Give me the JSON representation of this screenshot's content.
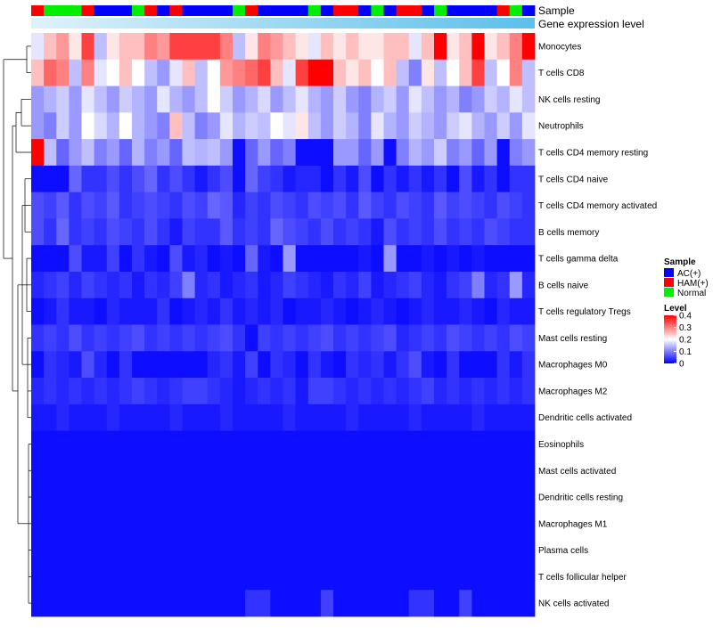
{
  "chart_data": {
    "type": "heatmap",
    "title": "",
    "annotation_labels": {
      "sample": "Sample",
      "expression": "Gene expression level"
    },
    "rows": [
      "Monocytes",
      "T cells CD8",
      "NK cells resting",
      "Neutrophils",
      "T cells CD4 memory resting",
      "T cells CD4 naive",
      "T cells CD4 memory activated",
      "B cells memory",
      "T cells gamma delta",
      "B cells naive",
      "T cells regulatory  Tregs",
      "Mast cells resting",
      "Macrophages M0",
      "Macrophages M2",
      "Dendritic cells activated",
      "Eosinophils",
      "Mast cells activated",
      "Dendritic cells resting",
      "Macrophages M1",
      "Plasma cells",
      "T cells follicular helper",
      "NK cells activated"
    ],
    "n_samples": 40,
    "sample_groups": [
      "HAM(+)",
      "Normal",
      "Normal",
      "Normal",
      "HAM(+)",
      "AC(+)",
      "AC(+)",
      "AC(+)",
      "Normal",
      "HAM(+)",
      "AC(+)",
      "HAM(+)",
      "AC(+)",
      "AC(+)",
      "AC(+)",
      "AC(+)",
      "Normal",
      "HAM(+)",
      "AC(+)",
      "AC(+)",
      "AC(+)",
      "AC(+)",
      "Normal",
      "AC(+)",
      "HAM(+)",
      "HAM(+)",
      "AC(+)",
      "Normal",
      "AC(+)",
      "HAM(+)",
      "HAM(+)",
      "AC(+)",
      "Normal",
      "AC(+)",
      "AC(+)",
      "AC(+)",
      "AC(+)",
      "HAM(+)",
      "Normal",
      "AC(+)"
    ],
    "values": [
      [
        0.18,
        0.25,
        0.28,
        0.22,
        0.35,
        0.15,
        0.22,
        0.25,
        0.25,
        0.3,
        0.28,
        0.35,
        0.35,
        0.35,
        0.35,
        0.3,
        0.15,
        0.22,
        0.3,
        0.28,
        0.25,
        0.22,
        0.18,
        0.25,
        0.22,
        0.25,
        0.22,
        0.22,
        0.25,
        0.25,
        0.18,
        0.25,
        0.4,
        0.22,
        0.25,
        0.4,
        0.22,
        0.25,
        0.3,
        0.4
      ],
      [
        0.25,
        0.32,
        0.3,
        0.15,
        0.3,
        0.18,
        0.2,
        0.25,
        0.2,
        0.15,
        0.12,
        0.18,
        0.25,
        0.15,
        0.2,
        0.28,
        0.3,
        0.32,
        0.35,
        0.25,
        0.18,
        0.35,
        0.4,
        0.4,
        0.25,
        0.22,
        0.25,
        0.2,
        0.25,
        0.15,
        0.1,
        0.22,
        0.15,
        0.2,
        0.25,
        0.35,
        0.15,
        0.2,
        0.3,
        0.15
      ],
      [
        0.12,
        0.14,
        0.16,
        0.12,
        0.18,
        0.15,
        0.12,
        0.16,
        0.14,
        0.12,
        0.18,
        0.14,
        0.12,
        0.15,
        0.2,
        0.16,
        0.12,
        0.14,
        0.17,
        0.12,
        0.15,
        0.18,
        0.14,
        0.12,
        0.16,
        0.12,
        0.1,
        0.14,
        0.16,
        0.12,
        0.18,
        0.15,
        0.12,
        0.14,
        0.1,
        0.12,
        0.16,
        0.14,
        0.18,
        0.15
      ],
      [
        0.12,
        0.1,
        0.16,
        0.12,
        0.2,
        0.17,
        0.14,
        0.2,
        0.14,
        0.12,
        0.1,
        0.25,
        0.15,
        0.1,
        0.12,
        0.18,
        0.14,
        0.16,
        0.15,
        0.2,
        0.18,
        0.22,
        0.15,
        0.12,
        0.16,
        0.14,
        0.1,
        0.18,
        0.14,
        0.12,
        0.16,
        0.14,
        0.12,
        0.16,
        0.18,
        0.14,
        0.12,
        0.16,
        0.12,
        0.18
      ],
      [
        0.4,
        0.15,
        0.08,
        0.12,
        0.15,
        0.1,
        0.12,
        0.08,
        0.14,
        0.1,
        0.12,
        0.08,
        0.15,
        0.14,
        0.15,
        0.12,
        0.01,
        0.08,
        0.12,
        0.08,
        0.1,
        0.01,
        0.01,
        0.01,
        0.12,
        0.12,
        0.08,
        0.12,
        0.01,
        0.1,
        0.14,
        0.12,
        0.16,
        0.1,
        0.12,
        0.08,
        0.12,
        0.01,
        0.1,
        0.12
      ],
      [
        0.01,
        0.01,
        0.01,
        0.08,
        0.04,
        0.04,
        0.06,
        0.04,
        0.06,
        0.08,
        0.04,
        0.06,
        0.04,
        0.02,
        0.04,
        0.06,
        0.01,
        0.08,
        0.05,
        0.04,
        0.02,
        0.03,
        0.03,
        0.01,
        0.04,
        0.02,
        0.06,
        0.01,
        0.04,
        0.02,
        0.04,
        0.02,
        0.04,
        0.01,
        0.06,
        0.02,
        0.04,
        0.01,
        0.04,
        0.04
      ],
      [
        0.06,
        0.05,
        0.07,
        0.04,
        0.06,
        0.05,
        0.07,
        0.04,
        0.05,
        0.06,
        0.05,
        0.04,
        0.06,
        0.05,
        0.08,
        0.07,
        0.03,
        0.05,
        0.04,
        0.06,
        0.05,
        0.04,
        0.06,
        0.05,
        0.06,
        0.04,
        0.07,
        0.05,
        0.04,
        0.06,
        0.05,
        0.04,
        0.07,
        0.05,
        0.06,
        0.05,
        0.04,
        0.06,
        0.05,
        0.04
      ],
      [
        0.06,
        0.04,
        0.08,
        0.04,
        0.05,
        0.04,
        0.06,
        0.05,
        0.04,
        0.06,
        0.04,
        0.02,
        0.05,
        0.04,
        0.04,
        0.07,
        0.04,
        0.05,
        0.04,
        0.08,
        0.06,
        0.05,
        0.04,
        0.06,
        0.04,
        0.05,
        0.04,
        0.02,
        0.06,
        0.04,
        0.05,
        0.04,
        0.06,
        0.04,
        0.05,
        0.04,
        0.06,
        0.05,
        0.04,
        0.04
      ],
      [
        0.01,
        0.01,
        0.01,
        0.06,
        0.02,
        0.02,
        0.05,
        0.01,
        0.04,
        0.02,
        0.01,
        0.06,
        0.02,
        0.03,
        0.01,
        0.02,
        0.01,
        0.08,
        0.02,
        0.01,
        0.12,
        0.01,
        0.01,
        0.01,
        0.01,
        0.01,
        0.02,
        0.01,
        0.12,
        0.01,
        0.01,
        0.02,
        0.01,
        0.02,
        0.01,
        0.02,
        0.01,
        0.01,
        0.01,
        0.01
      ],
      [
        0.03,
        0.04,
        0.05,
        0.03,
        0.05,
        0.04,
        0.03,
        0.04,
        0.02,
        0.04,
        0.03,
        0.05,
        0.1,
        0.03,
        0.04,
        0.02,
        0.03,
        0.04,
        0.02,
        0.03,
        0.05,
        0.04,
        0.03,
        0.02,
        0.04,
        0.03,
        0.05,
        0.02,
        0.03,
        0.04,
        0.05,
        0.03,
        0.02,
        0.04,
        0.05,
        0.1,
        0.03,
        0.04,
        0.12,
        0.03
      ],
      [
        0.01,
        0.02,
        0.04,
        0.02,
        0.02,
        0.01,
        0.03,
        0.02,
        0.02,
        0.02,
        0.04,
        0.01,
        0.02,
        0.03,
        0.02,
        0.04,
        0.02,
        0.03,
        0.02,
        0.03,
        0.01,
        0.02,
        0.02,
        0.03,
        0.02,
        0.01,
        0.02,
        0.03,
        0.02,
        0.01,
        0.02,
        0.03,
        0.02,
        0.02,
        0.03,
        0.02,
        0.01,
        0.03,
        0.02,
        0.02
      ],
      [
        0.04,
        0.05,
        0.04,
        0.06,
        0.04,
        0.05,
        0.04,
        0.05,
        0.06,
        0.04,
        0.05,
        0.04,
        0.05,
        0.04,
        0.05,
        0.06,
        0.04,
        0.01,
        0.05,
        0.04,
        0.05,
        0.04,
        0.05,
        0.06,
        0.04,
        0.05,
        0.04,
        0.05,
        0.06,
        0.03,
        0.04,
        0.05,
        0.04,
        0.06,
        0.05,
        0.04,
        0.05,
        0.04,
        0.06,
        0.05
      ],
      [
        0.01,
        0.04,
        0.03,
        0.02,
        0.06,
        0.03,
        0.01,
        0.04,
        0.01,
        0.01,
        0.01,
        0.01,
        0.01,
        0.01,
        0.03,
        0.04,
        0.02,
        0.05,
        0.01,
        0.04,
        0.03,
        0.01,
        0.04,
        0.02,
        0.01,
        0.04,
        0.03,
        0.04,
        0.02,
        0.04,
        0.06,
        0.02,
        0.01,
        0.04,
        0.01,
        0.01,
        0.01,
        0.04,
        0.02,
        0.04
      ],
      [
        0.03,
        0.04,
        0.03,
        0.04,
        0.03,
        0.04,
        0.03,
        0.04,
        0.05,
        0.04,
        0.03,
        0.04,
        0.05,
        0.05,
        0.04,
        0.03,
        0.02,
        0.03,
        0.04,
        0.03,
        0.04,
        0.02,
        0.05,
        0.05,
        0.04,
        0.03,
        0.04,
        0.03,
        0.04,
        0.03,
        0.04,
        0.05,
        0.03,
        0.04,
        0.03,
        0.04,
        0.03,
        0.04,
        0.03,
        0.04
      ],
      [
        0.02,
        0.02,
        0.03,
        0.02,
        0.02,
        0.02,
        0.03,
        0.02,
        0.02,
        0.02,
        0.02,
        0.03,
        0.02,
        0.02,
        0.02,
        0.03,
        0.02,
        0.02,
        0.02,
        0.02,
        0.03,
        0.02,
        0.02,
        0.02,
        0.02,
        0.03,
        0.02,
        0.02,
        0.02,
        0.02,
        0.03,
        0.02,
        0.02,
        0.02,
        0.02,
        0.03,
        0.02,
        0.02,
        0.02,
        0.02
      ],
      [
        0.01,
        0.01,
        0.01,
        0.01,
        0.01,
        0.01,
        0.01,
        0.01,
        0.01,
        0.01,
        0.01,
        0.01,
        0.01,
        0.01,
        0.01,
        0.01,
        0.01,
        0.01,
        0.01,
        0.01,
        0.01,
        0.01,
        0.01,
        0.01,
        0.01,
        0.01,
        0.01,
        0.01,
        0.01,
        0.01,
        0.01,
        0.01,
        0.01,
        0.01,
        0.01,
        0.01,
        0.01,
        0.01,
        0.01,
        0.01
      ],
      [
        0.01,
        0.01,
        0.01,
        0.01,
        0.01,
        0.01,
        0.01,
        0.01,
        0.01,
        0.01,
        0.01,
        0.01,
        0.01,
        0.01,
        0.01,
        0.01,
        0.01,
        0.01,
        0.01,
        0.01,
        0.01,
        0.01,
        0.01,
        0.01,
        0.01,
        0.01,
        0.01,
        0.01,
        0.01,
        0.01,
        0.01,
        0.01,
        0.01,
        0.01,
        0.01,
        0.01,
        0.01,
        0.01,
        0.01,
        0.01
      ],
      [
        0.01,
        0.01,
        0.01,
        0.01,
        0.01,
        0.01,
        0.01,
        0.01,
        0.01,
        0.01,
        0.01,
        0.01,
        0.01,
        0.01,
        0.01,
        0.01,
        0.01,
        0.01,
        0.01,
        0.01,
        0.01,
        0.01,
        0.01,
        0.01,
        0.01,
        0.01,
        0.01,
        0.01,
        0.01,
        0.01,
        0.01,
        0.01,
        0.01,
        0.01,
        0.01,
        0.01,
        0.01,
        0.01,
        0.01,
        0.01
      ],
      [
        0.01,
        0.01,
        0.01,
        0.01,
        0.01,
        0.01,
        0.01,
        0.01,
        0.01,
        0.01,
        0.01,
        0.01,
        0.01,
        0.01,
        0.01,
        0.01,
        0.01,
        0.01,
        0.01,
        0.01,
        0.01,
        0.01,
        0.01,
        0.01,
        0.01,
        0.01,
        0.01,
        0.01,
        0.01,
        0.01,
        0.01,
        0.01,
        0.01,
        0.01,
        0.01,
        0.01,
        0.01,
        0.01,
        0.01,
        0.01
      ],
      [
        0.01,
        0.01,
        0.01,
        0.01,
        0.01,
        0.01,
        0.01,
        0.01,
        0.01,
        0.01,
        0.01,
        0.01,
        0.01,
        0.01,
        0.01,
        0.01,
        0.01,
        0.01,
        0.01,
        0.01,
        0.01,
        0.01,
        0.01,
        0.01,
        0.01,
        0.01,
        0.01,
        0.01,
        0.01,
        0.01,
        0.01,
        0.01,
        0.01,
        0.01,
        0.01,
        0.01,
        0.01,
        0.01,
        0.01,
        0.01
      ],
      [
        0.01,
        0.01,
        0.01,
        0.01,
        0.01,
        0.01,
        0.01,
        0.01,
        0.01,
        0.01,
        0.01,
        0.01,
        0.01,
        0.01,
        0.01,
        0.01,
        0.01,
        0.01,
        0.01,
        0.01,
        0.01,
        0.01,
        0.01,
        0.01,
        0.01,
        0.01,
        0.01,
        0.01,
        0.01,
        0.01,
        0.01,
        0.01,
        0.01,
        0.01,
        0.01,
        0.01,
        0.01,
        0.01,
        0.01,
        0.01
      ],
      [
        0.01,
        0.01,
        0.01,
        0.01,
        0.01,
        0.01,
        0.01,
        0.01,
        0.01,
        0.01,
        0.01,
        0.01,
        0.01,
        0.01,
        0.01,
        0.01,
        0.01,
        0.04,
        0.04,
        0.01,
        0.01,
        0.01,
        0.01,
        0.05,
        0.01,
        0.01,
        0.01,
        0.01,
        0.01,
        0.01,
        0.04,
        0.04,
        0.01,
        0.01,
        0.05,
        0.01,
        0.01,
        0.01,
        0.01,
        0.01
      ]
    ],
    "value_range": [
      0,
      0.4
    ],
    "color_scale": {
      "low": "#0000ff",
      "mid": "#ffffff",
      "high": "#ff0000",
      "mid_value": 0.2
    },
    "expression_bar_colors": [
      "#dff2fb",
      "#5bc0eb"
    ],
    "legend": {
      "sample_title": "Sample",
      "entries": [
        {
          "label": "AC(+)",
          "color": "#0000ff"
        },
        {
          "label": "HAM(+)",
          "color": "#ff0000"
        },
        {
          "label": "Normal",
          "color": "#00ee00"
        }
      ],
      "level_title": "Level",
      "level_ticks": [
        "0.4",
        "0.3",
        "0.2",
        "0.1",
        "0"
      ],
      "level_tick_values": [
        0.4,
        0.3,
        0.2,
        0.1,
        0
      ],
      "position": "right"
    },
    "group_colors": {
      "AC(+)": "#0000ff",
      "HAM(+)": "#ff0000",
      "Normal": "#00ee00"
    },
    "dendrogram": true
  }
}
